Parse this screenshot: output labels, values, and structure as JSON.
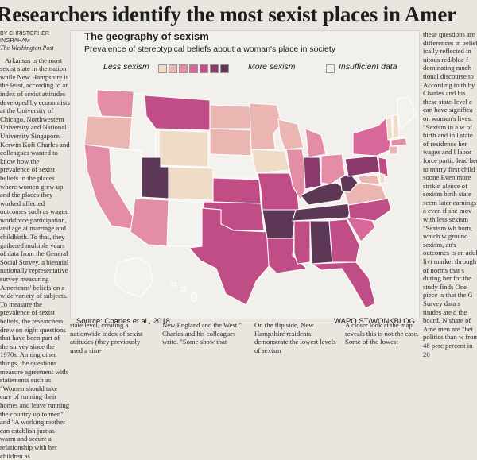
{
  "headline": "Researchers identify the most sexist places in Amer",
  "left_column": {
    "byline_1": "BY CHRISTOPHER",
    "byline_2": "INGRAHAM",
    "source": "The Washington Post",
    "text": "Arkansas is the most sexist state in the nation while New Hampshire is the least, according to an index of sexist attitudes developed by economists at the University of Chicago, Northwestern University and National University Singapore. Kerwin Kofi Charles and colleagues wanted to know how the prevalence of sexist beliefs in the places where women grew up and the places they worked affected outcomes such as wages, workforce participation, and age at marriage and childbirth. To that, they gathered multiple years of data from the General Social Survey, a biennial nationally representative survey measuring Americans' beliefs on a wide variety of subjects. To measure the prevalence of sexist beliefs, the researchers drew on eight questions that have been part of the survey since the 1970s. Among other things, the questions measure agreement with statements such as \"Women should take care of running their homes and leave running the country up to men\" and \"A working mother can establish just as warm and secure a relationship with her children as"
  },
  "right_column": {
    "text": "these questions are differences in belief ically reflected in uitous red/blue f dominating much tional discourse to According to th by Charles and his these state-level c can have significa on women's lives. \"Sexism in a w of birth and in l state of residence her wages and l labor force partic lead her to marry first child soone Even more strikin alence of sexism birth state seem later earnings a even if she mov with less sexism \"Sexism wh born, which w ground sexism, an's outcomes is an adult livi market through of norms that s during her for the study finds One piece is that the G Survey data s titudes are d the board. N share of Ame men are \"bet politics than w from 48 perc percent in 20"
  },
  "bottom_columns": [
    "state level, creating a nationwide index of sexist attitudes (they previously used a sim-",
    "New England and the West,\" Charles and his colleagues write. \"Some show that",
    "On the flip side, New Hampshire residents demonstrate the lowest levels of sexism",
    "A closer look at the map reveals this is not the case. Some of the lowest"
  ],
  "graphic": {
    "title": "The geography of sexism",
    "subtitle": "Prevalence of stereotypical beliefs about a woman's place in society",
    "legend": {
      "less_label": "Less sexism",
      "more_label": "More sexism",
      "insufficient_label": "Insufficient data",
      "scale_colors": [
        "#efdcc6",
        "#ebb6b2",
        "#e48da7",
        "#d9689a",
        "#c04d85",
        "#8c3a6c",
        "#5c3756"
      ],
      "insufficient_color": "#f4f2ee"
    },
    "source": "Source: Charles et al., 2018",
    "credit": "WAPO.ST/WONKBLOG"
  }
}
